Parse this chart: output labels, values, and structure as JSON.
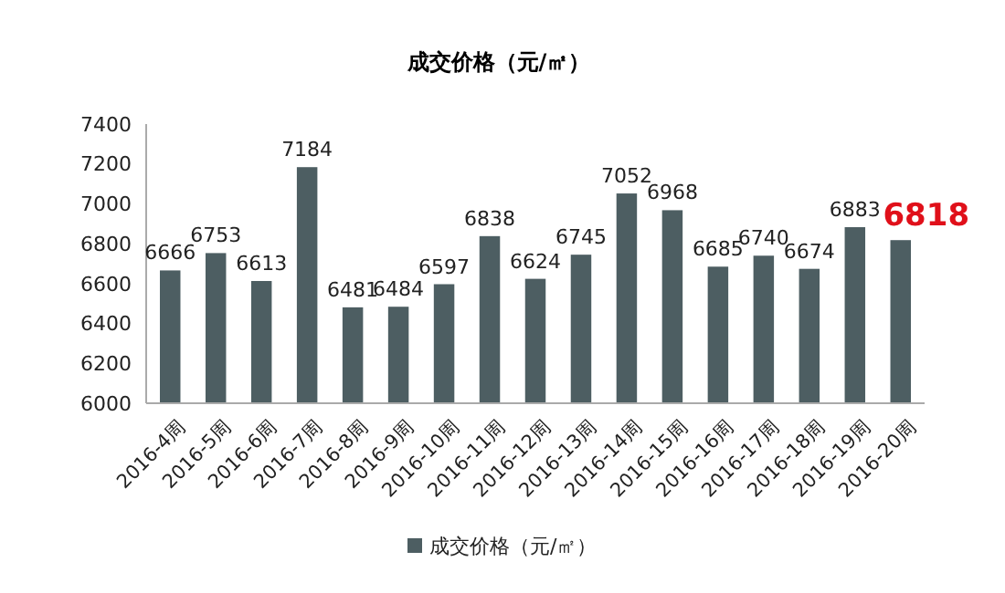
{
  "chart_data": {
    "type": "bar",
    "title": "成交价格（元/㎡）",
    "categories": [
      "2016-4周",
      "2016-5周",
      "2016-6周",
      "2016-7周",
      "2016-8周",
      "2016-9周",
      "2016-10周",
      "2016-11周",
      "2016-12周",
      "2016-13周",
      "2016-14周",
      "2016-15周",
      "2016-16周",
      "2016-17周",
      "2016-18周",
      "2016-19周",
      "2016-20周"
    ],
    "series": [
      {
        "name": "成交价格（元/㎡）",
        "color": "#4d5e62",
        "values": [
          6666,
          6753,
          6613,
          7184,
          6481,
          6484,
          6597,
          6838,
          6624,
          6745,
          7052,
          6968,
          6685,
          6740,
          6674,
          6883,
          6818
        ],
        "value_labels": [
          "6666",
          "6753",
          "6613",
          "7184",
          "6481",
          "6484",
          "6597",
          "6838",
          "6624",
          "6745",
          "7052",
          "6968",
          "6685",
          "6740",
          "6674",
          "6883",
          null
        ]
      }
    ],
    "annotations": [
      {
        "text": "6818",
        "x": "2016-20周",
        "y": 6818
      }
    ],
    "ylim": [
      6000,
      7400
    ],
    "yticks": [
      6000,
      6200,
      6400,
      6600,
      6800,
      7000,
      7200,
      7400
    ],
    "grid": false,
    "legend": "bottom"
  }
}
